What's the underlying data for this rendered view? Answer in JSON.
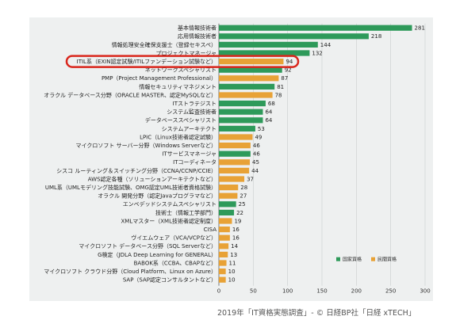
{
  "colors": {
    "national": "#2e9a5a",
    "private": "#e8a236",
    "highlight": "#d9261c"
  },
  "chart_data": {
    "type": "bar",
    "orientation": "horizontal",
    "title": "",
    "xlabel": "",
    "ylabel": "",
    "xlim": [
      0,
      300
    ],
    "x_ticks": [
      0,
      50,
      100,
      150,
      200,
      250,
      300
    ],
    "grid": true,
    "legend_position": "bottom-right",
    "legend": [
      {
        "key": "national",
        "label": "国家資格"
      },
      {
        "key": "private",
        "label": "民間資格"
      }
    ],
    "categories": [
      "基本情報技術者",
      "応用情報技術者",
      "情報処理安全確保支援士（登録セキスペ）",
      "プロジェクトマネージャ",
      "ITIL系（EXIN認定試験/ITILファンデーション試験など）",
      "ネットワークスペシャリスト",
      "PMP（Project Management Professional）",
      "情報セキュリティマネジメント",
      "オラクル データベース分野（ORACLE MASTER、認定MySQLなど）",
      "ITストラテジスト",
      "システム監査技術者",
      "データベーススペシャリスト",
      "システムアーキテクト",
      "LPIC（Linux技術者認定試験）",
      "マイクロソフト サーバー分野（Windows Serverなど）",
      "ITサービスマネージャ",
      "ITコーディネータ",
      "シスコ ルーティング＆スイッチング分野（CCNA/CCNP/CCIE）",
      "AWS認定各種（ソリューションアーキテクトなど）",
      "UML系（UMLモデリング技能試験、OMG認定UML技術者資格試験）",
      "オラクル 開発分野（認定Javaプログラマなど）",
      "エンベデッドシステムスペシャリスト",
      "技術士（情報工学部門）",
      "XMLマスター（XML技術者認定制度）",
      "CISA",
      "ヴイエムウェア（VCA/VCPなど）",
      "マイクロソフト データベース分野（SQL Serverなど）",
      "G検定（JDLA Deep Learning for GENERAL）",
      "BABOK系（CCBA、CBAPなど）",
      "マイクロソフト クラウド分野（Cloud Platform、Linux on Azure）",
      "SAP（SAP認定コンサルタントなど）"
    ],
    "values": [
      281,
      218,
      144,
      132,
      94,
      92,
      87,
      81,
      78,
      68,
      64,
      64,
      53,
      49,
      46,
      46,
      45,
      44,
      37,
      28,
      27,
      25,
      22,
      19,
      16,
      16,
      14,
      13,
      11,
      10,
      10
    ],
    "value_labels": [
      "281",
      "218",
      "144",
      "132",
      "94",
      "92",
      "87",
      "81",
      "78",
      "68",
      "64",
      "64",
      "53",
      "49",
      "46",
      "46",
      "45",
      "44",
      "37",
      "28",
      "27",
      "25",
      "22",
      "19",
      "16",
      "16",
      "14",
      "13",
      "11",
      "10",
      "10"
    ],
    "qualification_type": [
      "national",
      "national",
      "national",
      "national",
      "private",
      "national",
      "private",
      "national",
      "private",
      "national",
      "national",
      "national",
      "national",
      "private",
      "private",
      "national",
      "private",
      "private",
      "private",
      "private",
      "private",
      "national",
      "national",
      "private",
      "private",
      "private",
      "private",
      "private",
      "private",
      "private",
      "private"
    ],
    "highlighted_category": "ITIL系（EXIN認定試験/ITILファンデーション試験など）"
  },
  "credit": "2019年「IT資格実態調査」- © 日経BP社「日経 xTECH」"
}
